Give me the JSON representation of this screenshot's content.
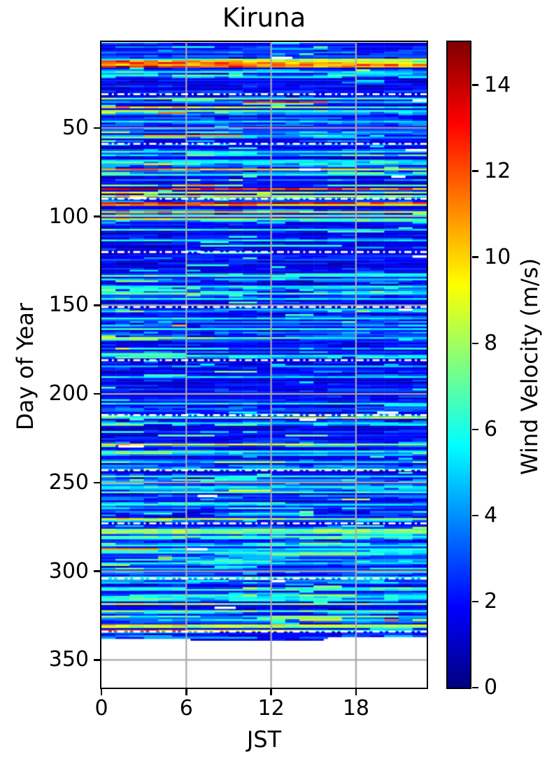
{
  "chart_data": {
    "type": "heatmap",
    "title": "Kiruna",
    "xlabel": "JST",
    "ylabel": "Day of Year",
    "colorbar_label": "Wind Velocity (m/s)",
    "colormap": "jet",
    "vmin": 0,
    "vmax": 15,
    "xlim": [
      0,
      23
    ],
    "ylim_days": [
      1.6,
      365.6
    ],
    "y_axis_inverted": true,
    "x_ticks": [
      0,
      6,
      12,
      18
    ],
    "y_ticks": [
      50,
      100,
      150,
      200,
      250,
      300,
      350
    ],
    "colorbar_ticks": [
      0,
      2,
      4,
      6,
      8,
      10,
      12,
      14
    ],
    "grid": true,
    "grid_color": "#aaaaaa",
    "separator_color": "#ffffff",
    "separator_style": "dash-dot",
    "month_separator_days": [
      31,
      59,
      90,
      120,
      151,
      181,
      212,
      243,
      273,
      304,
      334
    ],
    "hours_per_cell": 1,
    "data_day_start": 2,
    "data_day_end": 336,
    "partial_end_rows": [
      {
        "day": 337,
        "h0": 0,
        "h1": 16
      },
      {
        "day": 338,
        "h0": 6.3,
        "h1": 15.7
      }
    ],
    "base_wind_range_ms": [
      1.2,
      4.5
    ],
    "calm_spans_days": [
      [
        22,
        32
      ],
      [
        115,
        131
      ],
      [
        185,
        200
      ],
      [
        218,
        226
      ]
    ],
    "high_wind_events": [
      {
        "day": 11,
        "v_west": 6,
        "v_east": 9
      },
      {
        "day": 12,
        "v_west": 12,
        "v_east": 7
      },
      {
        "day": 13,
        "v_west": 13.5,
        "v_east": 9
      },
      {
        "day": 14,
        "v_west": 10,
        "v_east": 11.5
      },
      {
        "day": 15,
        "v_west": 13.5,
        "v_east": 9.5
      },
      {
        "day": 18,
        "v_west": 6.5,
        "v_east": 5
      },
      {
        "day": 33,
        "v_west": 7.5,
        "v_east": 6.5
      },
      {
        "day": 35,
        "v_west": 4,
        "v_east": 5,
        "segment": {
          "h0": 10,
          "h1": 16,
          "v": 13
        }
      },
      {
        "day": 38,
        "v_west": 11,
        "v_east": 5.5
      },
      {
        "day": 40,
        "v_west": 8,
        "v_east": 5.5
      },
      {
        "day": 46,
        "v_west": 6,
        "v_east": 5
      },
      {
        "day": 63,
        "v_west": 6,
        "v_east": 5.5
      },
      {
        "day": 68,
        "v_west": 5.5,
        "v_east": 5
      },
      {
        "day": 73,
        "v_west": 11,
        "v_east": 9
      },
      {
        "day": 76,
        "v_west": 6.5,
        "v_east": 5.5
      },
      {
        "day": 84,
        "v_west": 13,
        "v_east": 11.5
      },
      {
        "day": 86,
        "v_west": 9,
        "v_east": 7
      },
      {
        "day": 88,
        "v_west": 10,
        "v_east": 8
      },
      {
        "day": 92,
        "v_west": 14,
        "v_east": 12
      },
      {
        "day": 93,
        "v_west": 11,
        "v_east": 9
      },
      {
        "day": 97,
        "v_west": 11,
        "v_east": 9
      },
      {
        "day": 99,
        "v_west": 8,
        "v_east": 6
      },
      {
        "day": 101,
        "v_west": 9,
        "v_east": 6
      },
      {
        "day": 107,
        "v_west": 6.5,
        "v_east": 5
      },
      {
        "day": 113,
        "v_west": 6,
        "v_east": 5
      },
      {
        "day": 133,
        "v_west": 7.5,
        "v_east": 6
      },
      {
        "day": 139,
        "v_west": 6,
        "v_east": 5.5
      },
      {
        "day": 143,
        "v_west": 7.5,
        "v_east": 6
      },
      {
        "day": 146,
        "v_west": 6,
        "v_east": 5
      },
      {
        "day": 157,
        "v_west": 6,
        "v_east": 5
      },
      {
        "day": 163,
        "v_west": 6.5,
        "v_east": 5.5
      },
      {
        "day": 168,
        "v_west": 8.5,
        "v_east": 5
      },
      {
        "day": 178,
        "v_west": 6,
        "v_east": 5
      },
      {
        "day": 190,
        "v_west": 5.5,
        "v_east": 5
      },
      {
        "day": 205,
        "v_west": 6,
        "v_east": 5.5
      },
      {
        "day": 213,
        "v_west": 6,
        "v_east": 9
      },
      {
        "day": 216,
        "v_west": 6,
        "v_east": 5
      },
      {
        "day": 228,
        "v_west": 10,
        "v_east": 8
      },
      {
        "day": 232,
        "v_west": 6.5,
        "v_east": 5.5
      },
      {
        "day": 246,
        "v_west": 6.5,
        "v_east": 5.5
      },
      {
        "day": 252,
        "v_west": 6,
        "v_east": 5.5
      },
      {
        "day": 255,
        "v_west": 7,
        "v_east": 6
      },
      {
        "day": 262,
        "v_west": 6,
        "v_east": 5
      },
      {
        "day": 270,
        "v_west": 9,
        "v_east": 7
      },
      {
        "day": 276,
        "v_west": 7.5,
        "v_east": 7
      },
      {
        "day": 277,
        "v_west": 8,
        "v_east": 7.5
      },
      {
        "day": 278,
        "v_west": 7.5,
        "v_east": 7
      },
      {
        "day": 280,
        "v_west": 7,
        "v_east": 6.5
      },
      {
        "day": 285,
        "v_west": 6,
        "v_east": 5.5
      },
      {
        "day": 289,
        "v_west": 6.5,
        "v_east": 6
      },
      {
        "day": 295,
        "v_west": 6,
        "v_east": 5
      },
      {
        "day": 303,
        "v_west": 6.5,
        "v_east": 6
      },
      {
        "day": 310,
        "v_west": 6.5,
        "v_east": 6
      },
      {
        "day": 314,
        "v_west": 6,
        "v_east": 5.5
      },
      {
        "day": 318,
        "v_west": 9,
        "v_east": 7
      },
      {
        "day": 322,
        "v_west": 7.5,
        "v_east": 6.5
      },
      {
        "day": 330,
        "v_west": 9.5,
        "v_east": 8.5
      },
      {
        "day": 331,
        "v_west": 8,
        "v_east": 7
      },
      {
        "day": 333,
        "v_west": 13,
        "v_east": 4
      }
    ],
    "missing_data_segments": [
      {
        "day": 10,
        "h0": 12,
        "h1": 13.5
      },
      {
        "day": 34,
        "h0": 22,
        "h1": 23
      },
      {
        "day": 62,
        "h0": 21.5,
        "h1": 23
      },
      {
        "day": 73,
        "h0": 14,
        "h1": 15.5
      },
      {
        "day": 77,
        "h0": 20.5,
        "h1": 21.5
      },
      {
        "day": 89,
        "h0": 2,
        "h1": 3.2
      },
      {
        "day": 122,
        "h0": 22,
        "h1": 23
      },
      {
        "day": 152,
        "h0": 21,
        "h1": 22
      },
      {
        "day": 210,
        "h0": 19.5,
        "h1": 21
      },
      {
        "day": 214,
        "h0": 14,
        "h1": 15.2
      },
      {
        "day": 229,
        "h0": 1.2,
        "h1": 3
      },
      {
        "day": 257,
        "h0": 6.8,
        "h1": 8.2
      },
      {
        "day": 287,
        "h0": 6,
        "h1": 7.5
      },
      {
        "day": 305,
        "h0": 12,
        "h1": 13
      },
      {
        "day": 320,
        "h0": 8,
        "h1": 9.5
      }
    ],
    "noise_seed": 42
  }
}
